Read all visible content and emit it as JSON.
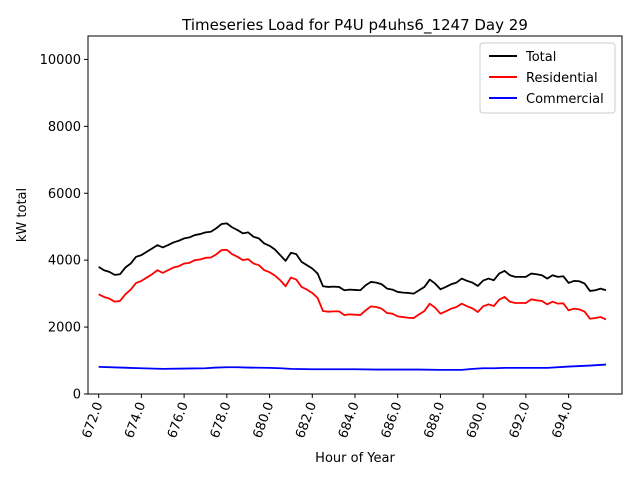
{
  "chart_data": {
    "type": "line",
    "title": "Timeseries Load for P4U p4uhs6_1247  Day 29",
    "xlabel": "Hour of Year",
    "ylabel": "kW total",
    "xlim": [
      671.5,
      696.5
    ],
    "ylim": [
      0,
      10700
    ],
    "xticks": [
      672.0,
      674.0,
      676.0,
      678.0,
      680.0,
      682.0,
      684.0,
      686.0,
      688.0,
      690.0,
      692.0,
      694.0
    ],
    "xtick_labels": [
      "672.0",
      "674.0",
      "676.0",
      "678.0",
      "680.0",
      "682.0",
      "684.0",
      "686.0",
      "688.0",
      "690.0",
      "692.0",
      "694.0"
    ],
    "yticks": [
      0,
      2000,
      4000,
      6000,
      8000,
      10000
    ],
    "ytick_labels": [
      "0",
      "2000",
      "4000",
      "6000",
      "8000",
      "10000"
    ],
    "legend_position": "top-right",
    "series": [
      {
        "name": "Total",
        "color": "#000000",
        "x": [
          672.0,
          672.25,
          672.5,
          672.75,
          673.0,
          673.25,
          673.5,
          673.75,
          674.0,
          674.25,
          674.5,
          674.75,
          675.0,
          675.25,
          675.5,
          675.75,
          676.0,
          676.25,
          676.5,
          676.75,
          677.0,
          677.25,
          677.5,
          677.75,
          678.0,
          678.25,
          678.5,
          678.75,
          679.0,
          679.25,
          679.5,
          679.75,
          680.0,
          680.25,
          680.5,
          680.75,
          681.0,
          681.25,
          681.5,
          681.75,
          682.0,
          682.25,
          682.5,
          682.75,
          683.0,
          683.25,
          683.5,
          683.75,
          684.0,
          684.25,
          684.5,
          684.75,
          685.0,
          685.25,
          685.5,
          685.75,
          686.0,
          686.25,
          686.5,
          686.75,
          687.0,
          687.25,
          687.5,
          687.75,
          688.0,
          688.25,
          688.5,
          688.75,
          689.0,
          689.25,
          689.5,
          689.75,
          690.0,
          690.25,
          690.5,
          690.75,
          691.0,
          691.25,
          691.5,
          691.75,
          692.0,
          692.25,
          692.5,
          692.75,
          693.0,
          693.25,
          693.5,
          693.75,
          694.0,
          694.25,
          694.5,
          694.75,
          695.0,
          695.25,
          695.5,
          695.75
        ],
        "values": [
          3800,
          3700,
          3650,
          3560,
          3580,
          3780,
          3900,
          4100,
          4150,
          4250,
          4350,
          4450,
          4380,
          4450,
          4530,
          4580,
          4650,
          4680,
          4750,
          4780,
          4830,
          4850,
          4950,
          5080,
          5100,
          4980,
          4900,
          4800,
          4830,
          4700,
          4650,
          4500,
          4430,
          4320,
          4150,
          3980,
          4220,
          4180,
          3950,
          3850,
          3750,
          3600,
          3220,
          3200,
          3210,
          3200,
          3100,
          3120,
          3110,
          3100,
          3250,
          3350,
          3330,
          3280,
          3150,
          3120,
          3050,
          3030,
          3020,
          3000,
          3100,
          3200,
          3420,
          3300,
          3130,
          3200,
          3280,
          3330,
          3450,
          3380,
          3330,
          3230,
          3390,
          3450,
          3400,
          3600,
          3680,
          3550,
          3500,
          3500,
          3500,
          3600,
          3580,
          3550,
          3450,
          3550,
          3500,
          3520,
          3320,
          3380,
          3370,
          3300,
          3080,
          3100,
          3150,
          3100
        ]
      },
      {
        "name": "Residential",
        "color": "#ff0000",
        "x": [
          672.0,
          672.25,
          672.5,
          672.75,
          673.0,
          673.25,
          673.5,
          673.75,
          674.0,
          674.25,
          674.5,
          674.75,
          675.0,
          675.25,
          675.5,
          675.75,
          676.0,
          676.25,
          676.5,
          676.75,
          677.0,
          677.25,
          677.5,
          677.75,
          678.0,
          678.25,
          678.5,
          678.75,
          679.0,
          679.25,
          679.5,
          679.75,
          680.0,
          680.25,
          680.5,
          680.75,
          681.0,
          681.25,
          681.5,
          681.75,
          682.0,
          682.25,
          682.5,
          682.75,
          683.0,
          683.25,
          683.5,
          683.75,
          684.0,
          684.25,
          684.5,
          684.75,
          685.0,
          685.25,
          685.5,
          685.75,
          686.0,
          686.25,
          686.5,
          686.75,
          687.0,
          687.25,
          687.5,
          687.75,
          688.0,
          688.25,
          688.5,
          688.75,
          689.0,
          689.25,
          689.5,
          689.75,
          690.0,
          690.25,
          690.5,
          690.75,
          691.0,
          691.25,
          691.5,
          691.75,
          692.0,
          692.25,
          692.5,
          692.75,
          693.0,
          693.25,
          693.5,
          693.75,
          694.0,
          694.25,
          694.5,
          694.75,
          695.0,
          695.25,
          695.5,
          695.75
        ],
        "values": [
          2980,
          2900,
          2850,
          2760,
          2780,
          2980,
          3120,
          3320,
          3380,
          3480,
          3580,
          3700,
          3620,
          3700,
          3780,
          3820,
          3900,
          3920,
          4000,
          4020,
          4070,
          4080,
          4170,
          4300,
          4310,
          4180,
          4100,
          4000,
          4030,
          3900,
          3850,
          3700,
          3640,
          3540,
          3400,
          3220,
          3480,
          3420,
          3200,
          3120,
          3020,
          2870,
          2480,
          2460,
          2470,
          2470,
          2360,
          2380,
          2370,
          2360,
          2500,
          2620,
          2600,
          2550,
          2420,
          2400,
          2320,
          2300,
          2280,
          2270,
          2380,
          2480,
          2700,
          2580,
          2400,
          2470,
          2550,
          2600,
          2700,
          2620,
          2560,
          2450,
          2620,
          2680,
          2630,
          2820,
          2900,
          2760,
          2720,
          2720,
          2720,
          2830,
          2800,
          2780,
          2680,
          2760,
          2700,
          2710,
          2500,
          2550,
          2530,
          2460,
          2250,
          2270,
          2300,
          2230
        ]
      },
      {
        "name": "Commercial",
        "color": "#0000ff",
        "x": [
          672.0,
          673.0,
          674.0,
          675.0,
          676.0,
          677.0,
          677.5,
          678.0,
          678.5,
          679.0,
          680.0,
          680.5,
          681.0,
          682.0,
          683.0,
          684.0,
          685.0,
          686.0,
          687.0,
          688.0,
          689.0,
          689.5,
          690.0,
          690.5,
          691.0,
          692.0,
          693.0,
          694.0,
          695.0,
          695.75
        ],
        "values": [
          810,
          790,
          770,
          750,
          760,
          770,
          790,
          800,
          800,
          790,
          780,
          770,
          750,
          740,
          740,
          740,
          730,
          730,
          730,
          720,
          720,
          750,
          770,
          770,
          780,
          780,
          780,
          820,
          850,
          880
        ]
      }
    ]
  }
}
